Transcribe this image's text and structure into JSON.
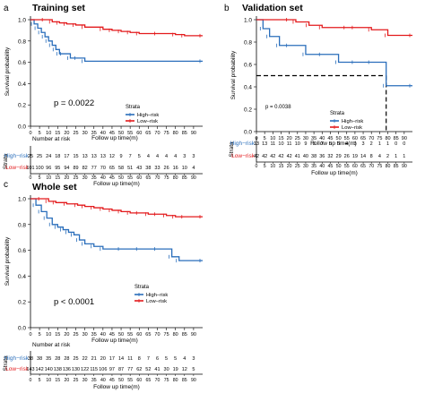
{
  "chart_data": [
    {
      "panel_letter": "a",
      "type": "line",
      "title": "Training set",
      "xlabel": "Follow up time(m)",
      "ylabel": "Survival probability",
      "xlim": [
        0,
        95
      ],
      "ylim": [
        0,
        1.0
      ],
      "x_ticks": [
        0,
        5,
        10,
        15,
        20,
        25,
        30,
        35,
        40,
        45,
        50,
        55,
        60,
        65,
        70,
        75,
        80,
        85,
        90
      ],
      "y_ticks": [
        "0.0",
        "0.2",
        "0.4",
        "0.6",
        "0.8",
        "1.0"
      ],
      "pvalue": "p = 0.0022",
      "legend": {
        "title": "Strata",
        "items": [
          "High−risk",
          "Low−risk"
        ],
        "placement": "center-right"
      },
      "series": [
        {
          "name": "High−risk",
          "color": "#2a6ebb",
          "x": [
            0,
            2,
            4,
            6,
            8,
            10,
            12,
            14,
            16,
            18,
            22,
            26,
            30,
            95
          ],
          "y": [
            1.0,
            0.96,
            0.92,
            0.88,
            0.84,
            0.8,
            0.76,
            0.72,
            0.68,
            0.68,
            0.64,
            0.64,
            0.61,
            0.61
          ]
        },
        {
          "name": "Low−risk",
          "color": "#e31a1c",
          "x": [
            0,
            8,
            12,
            16,
            20,
            25,
            30,
            40,
            45,
            50,
            55,
            60,
            70,
            80,
            85,
            95
          ],
          "y": [
            1.0,
            1.0,
            0.98,
            0.97,
            0.96,
            0.95,
            0.93,
            0.91,
            0.9,
            0.89,
            0.88,
            0.87,
            0.87,
            0.86,
            0.85,
            0.85
          ]
        }
      ],
      "risk_table": {
        "title": "Number at risk",
        "strata_label": "Strata",
        "rows": [
          {
            "label": "High−risk",
            "color": "#2a6ebb",
            "values": [
              25,
              25,
              24,
              18,
              17,
              15,
              13,
              13,
              13,
              12,
              9,
              7,
              5,
              4,
              4,
              4,
              4,
              3,
              3
            ]
          },
          {
            "label": "Low−risk",
            "color": "#e31a1c",
            "values": [
              101,
              100,
              96,
              95,
              94,
              89,
              82,
              77,
              70,
              65,
              58,
              51,
              43,
              38,
              33,
              26,
              16,
              10,
              4
            ]
          }
        ],
        "xlabel": "Follow up time(m)"
      }
    },
    {
      "panel_letter": "b",
      "type": "line",
      "title": "Validation set",
      "xlabel": "Follow up time(m)",
      "ylabel": "Survival probability",
      "xlim": [
        0,
        95
      ],
      "ylim": [
        0,
        1.0
      ],
      "x_ticks": [
        0,
        5,
        10,
        15,
        20,
        25,
        30,
        35,
        40,
        45,
        50,
        55,
        60,
        65,
        70,
        75,
        80,
        85,
        90
      ],
      "y_ticks": [
        "0.0",
        "0.2",
        "0.4",
        "0.6",
        "0.8",
        "1.0"
      ],
      "pvalue": "p = 0.0038",
      "median_line": {
        "y": 0.5,
        "x": 79
      },
      "legend": {
        "title": "Strata",
        "items": [
          "High−risk",
          "Low−risk"
        ],
        "placement": "bottom-right"
      },
      "series": [
        {
          "name": "High−risk",
          "color": "#2a6ebb",
          "x": [
            0,
            4,
            8,
            14,
            20,
            30,
            40,
            50,
            60,
            70,
            79,
            95
          ],
          "y": [
            1.0,
            0.92,
            0.85,
            0.77,
            0.77,
            0.69,
            0.69,
            0.62,
            0.62,
            0.62,
            0.41,
            0.41
          ]
        },
        {
          "name": "Low−risk",
          "color": "#e31a1c",
          "x": [
            0,
            20,
            24,
            32,
            40,
            55,
            60,
            70,
            80,
            95
          ],
          "y": [
            1.0,
            1.0,
            0.98,
            0.95,
            0.93,
            0.93,
            0.93,
            0.91,
            0.86,
            0.86
          ]
        }
      ],
      "risk_table": {
        "title": "",
        "strata_label": "Strata",
        "rows": [
          {
            "label": "High−risk",
            "color": "#2a6ebb",
            "values": [
              13,
              13,
              11,
              10,
              11,
              10,
              9,
              8,
              7,
              5,
              5,
              4,
              3,
              3,
              2,
              1,
              1,
              0,
              0
            ]
          },
          {
            "label": "Low−risk",
            "color": "#e31a1c",
            "values": [
              42,
              42,
              42,
              42,
              42,
              41,
              40,
              38,
              36,
              32,
              29,
              26,
              19,
              14,
              8,
              4,
              2,
              1,
              1
            ]
          }
        ],
        "xlabel": "Follow up time(m)"
      }
    },
    {
      "panel_letter": "c",
      "type": "line",
      "title": "Whole set",
      "xlabel": "Follow up time(m)",
      "ylabel": "Survival probability",
      "xlim": [
        0,
        95
      ],
      "ylim": [
        0,
        1.0
      ],
      "x_ticks": [
        0,
        5,
        10,
        15,
        20,
        25,
        30,
        35,
        40,
        45,
        50,
        55,
        60,
        65,
        70,
        75,
        80,
        85,
        90
      ],
      "y_ticks": [
        "0.0",
        "0.2",
        "0.4",
        "0.6",
        "0.8",
        "1.0"
      ],
      "pvalue": "p < 0.0001",
      "legend": {
        "title": "Strata",
        "items": [
          "High−risk",
          "Low−risk"
        ],
        "placement": "center-right"
      },
      "series": [
        {
          "name": "High−risk",
          "color": "#2a6ebb",
          "x": [
            0,
            3,
            6,
            9,
            12,
            15,
            18,
            21,
            24,
            27,
            30,
            35,
            40,
            50,
            60,
            70,
            78,
            82,
            95
          ],
          "y": [
            1.0,
            0.95,
            0.9,
            0.85,
            0.8,
            0.78,
            0.76,
            0.74,
            0.72,
            0.68,
            0.65,
            0.63,
            0.61,
            0.61,
            0.61,
            0.61,
            0.55,
            0.52,
            0.52
          ]
        },
        {
          "name": "Low−risk",
          "color": "#e31a1c",
          "x": [
            0,
            6,
            10,
            14,
            20,
            26,
            30,
            35,
            40,
            45,
            50,
            55,
            60,
            65,
            70,
            75,
            80,
            85,
            95
          ],
          "y": [
            1.0,
            1.0,
            0.98,
            0.97,
            0.96,
            0.95,
            0.94,
            0.93,
            0.92,
            0.91,
            0.9,
            0.89,
            0.89,
            0.88,
            0.88,
            0.87,
            0.86,
            0.86,
            0.86
          ]
        }
      ],
      "risk_table": {
        "title": "Number at risk",
        "strata_label": "Strata",
        "rows": [
          {
            "label": "High−risk",
            "color": "#2a6ebb",
            "values": [
              38,
              38,
              35,
              28,
              28,
              25,
              22,
              21,
              20,
              17,
              14,
              11,
              8,
              7,
              6,
              5,
              5,
              4,
              3
            ]
          },
          {
            "label": "Low−risk",
            "color": "#e31a1c",
            "values": [
              143,
              142,
              140,
              138,
              136,
              130,
              122,
              115,
              106,
              97,
              87,
              77,
              62,
              52,
              41,
              30,
              19,
              12,
              5
            ]
          }
        ],
        "xlabel": "Follow up time(m)"
      }
    }
  ]
}
